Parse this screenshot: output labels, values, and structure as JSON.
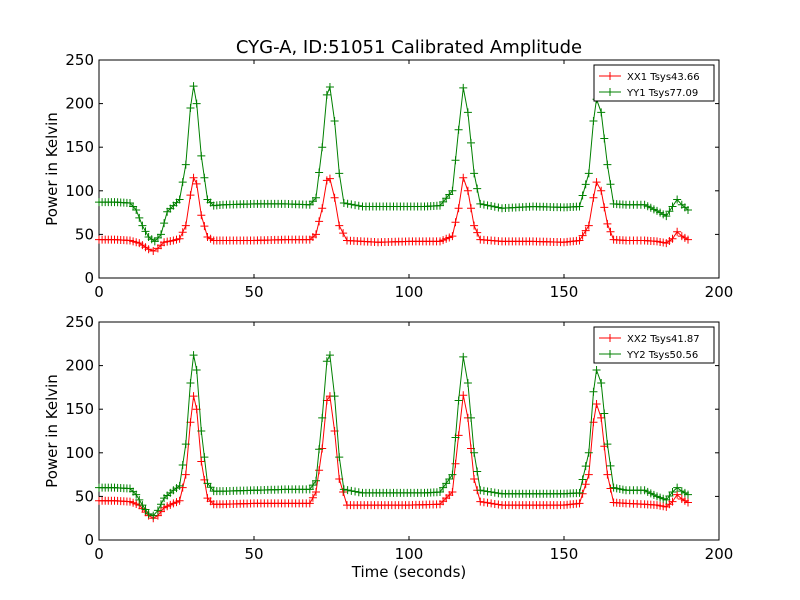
{
  "chart_data": [
    {
      "type": "line",
      "title": "CYG-A, ID:51051 Calibrated Amplitude",
      "xlabel": "",
      "ylabel": "Power in Kelvin",
      "xlim": [
        0,
        200
      ],
      "ylim": [
        0,
        250
      ],
      "xticks": [
        0,
        50,
        100,
        150,
        200
      ],
      "yticks": [
        0,
        50,
        100,
        150,
        200,
        250
      ],
      "marker": "+",
      "legend_position": "top-right",
      "grid": false,
      "series": [
        {
          "name": "XX1 Tsys43.66",
          "color": "#ff0000",
          "points": [
            [
              0,
              44
            ],
            [
              5,
              44
            ],
            [
              10,
              43
            ],
            [
              13,
              40
            ],
            [
              16,
              33
            ],
            [
              17.5,
              31
            ],
            [
              19,
              34
            ],
            [
              21,
              41
            ],
            [
              24,
              43
            ],
            [
              26,
              45
            ],
            [
              28,
              60
            ],
            [
              29.5,
              95
            ],
            [
              30.5,
              115
            ],
            [
              31.5,
              108
            ],
            [
              33,
              72
            ],
            [
              35,
              47
            ],
            [
              37,
              43
            ],
            [
              40,
              43
            ],
            [
              50,
              43
            ],
            [
              60,
              44
            ],
            [
              68,
              44
            ],
            [
              70,
              50
            ],
            [
              72,
              80
            ],
            [
              73.5,
              112
            ],
            [
              74.5,
              114
            ],
            [
              76,
              92
            ],
            [
              77.5,
              60
            ],
            [
              80,
              43
            ],
            [
              90,
              41
            ],
            [
              100,
              42
            ],
            [
              110,
              42
            ],
            [
              114,
              48
            ],
            [
              116,
              80
            ],
            [
              117.5,
              115
            ],
            [
              119,
              100
            ],
            [
              121,
              60
            ],
            [
              123,
              44
            ],
            [
              130,
              42
            ],
            [
              140,
              42
            ],
            [
              150,
              41
            ],
            [
              155,
              43
            ],
            [
              158,
              60
            ],
            [
              159.5,
              92
            ],
            [
              160.5,
              110
            ],
            [
              162,
              100
            ],
            [
              164,
              62
            ],
            [
              166,
              44
            ],
            [
              170,
              43
            ],
            [
              176,
              43
            ],
            [
              180,
              42
            ],
            [
              183,
              40
            ],
            [
              185,
              45
            ],
            [
              186.5,
              53
            ],
            [
              188,
              48
            ],
            [
              190,
              44
            ]
          ]
        },
        {
          "name": "YY1 Tsys77.09",
          "color": "#008000",
          "points": [
            [
              0,
              87
            ],
            [
              5,
              87
            ],
            [
              10,
              86
            ],
            [
              12,
              78
            ],
            [
              14,
              60
            ],
            [
              16,
              47
            ],
            [
              18,
              42
            ],
            [
              20,
              50
            ],
            [
              22,
              76
            ],
            [
              24,
              83
            ],
            [
              26,
              90
            ],
            [
              28,
              130
            ],
            [
              29.5,
              195
            ],
            [
              30.5,
              220
            ],
            [
              31.5,
              200
            ],
            [
              33,
              140
            ],
            [
              35,
              90
            ],
            [
              37,
              83
            ],
            [
              40,
              84
            ],
            [
              50,
              85
            ],
            [
              60,
              85
            ],
            [
              68,
              84
            ],
            [
              70,
              92
            ],
            [
              72,
              150
            ],
            [
              73.5,
              210
            ],
            [
              74.5,
              219
            ],
            [
              76,
              180
            ],
            [
              77.5,
              120
            ],
            [
              79,
              86
            ],
            [
              85,
              82
            ],
            [
              95,
              82
            ],
            [
              105,
              82
            ],
            [
              110,
              83
            ],
            [
              114,
              100
            ],
            [
              116,
              170
            ],
            [
              117.5,
              218
            ],
            [
              119,
              190
            ],
            [
              121,
              120
            ],
            [
              123,
              85
            ],
            [
              130,
              80
            ],
            [
              140,
              82
            ],
            [
              150,
              81
            ],
            [
              155,
              82
            ],
            [
              158,
              120
            ],
            [
              159.5,
              180
            ],
            [
              160.5,
              205
            ],
            [
              162,
              190
            ],
            [
              164,
              130
            ],
            [
              166,
              85
            ],
            [
              170,
              84
            ],
            [
              176,
              84
            ],
            [
              180,
              77
            ],
            [
              183,
              71
            ],
            [
              185,
              82
            ],
            [
              186.5,
              90
            ],
            [
              188,
              84
            ],
            [
              190,
              78
            ]
          ]
        }
      ]
    },
    {
      "type": "line",
      "title": "",
      "xlabel": "Time (seconds)",
      "ylabel": "Power in Kelvin",
      "xlim": [
        0,
        200
      ],
      "ylim": [
        0,
        250
      ],
      "xticks": [
        0,
        50,
        100,
        150,
        200
      ],
      "yticks": [
        0,
        50,
        100,
        150,
        200,
        250
      ],
      "marker": "+",
      "legend_position": "top-right",
      "grid": false,
      "series": [
        {
          "name": "XX2 Tsys41.87",
          "color": "#ff0000",
          "points": [
            [
              0,
              45
            ],
            [
              5,
              45
            ],
            [
              10,
              44
            ],
            [
              13,
              40
            ],
            [
              16,
              28
            ],
            [
              17.5,
              25
            ],
            [
              19,
              28
            ],
            [
              21,
              37
            ],
            [
              24,
              42
            ],
            [
              26,
              45
            ],
            [
              28,
              75
            ],
            [
              29.5,
              135
            ],
            [
              30.5,
              165
            ],
            [
              31.5,
              150
            ],
            [
              33,
              90
            ],
            [
              35,
              48
            ],
            [
              37,
              41
            ],
            [
              40,
              41
            ],
            [
              50,
              42
            ],
            [
              60,
              42
            ],
            [
              68,
              42
            ],
            [
              70,
              55
            ],
            [
              72,
              105
            ],
            [
              73.5,
              160
            ],
            [
              74.5,
              165
            ],
            [
              76,
              125
            ],
            [
              77.5,
              70
            ],
            [
              80,
              40
            ],
            [
              90,
              40
            ],
            [
              100,
              40
            ],
            [
              110,
              41
            ],
            [
              114,
              55
            ],
            [
              116,
              120
            ],
            [
              117.5,
              166
            ],
            [
              119,
              140
            ],
            [
              121,
              70
            ],
            [
              123,
              44
            ],
            [
              130,
              40
            ],
            [
              140,
              40
            ],
            [
              150,
              40
            ],
            [
              155,
              42
            ],
            [
              158,
              75
            ],
            [
              159.5,
              135
            ],
            [
              160.5,
              156
            ],
            [
              162,
              140
            ],
            [
              164,
              75
            ],
            [
              166,
              43
            ],
            [
              170,
              42
            ],
            [
              176,
              41
            ],
            [
              180,
              40
            ],
            [
              183,
              38
            ],
            [
              185,
              44
            ],
            [
              186.5,
              52
            ],
            [
              188,
              47
            ],
            [
              190,
              43
            ]
          ]
        },
        {
          "name": "YY2 Tsys50.56",
          "color": "#008000",
          "points": [
            [
              0,
              60
            ],
            [
              5,
              60
            ],
            [
              10,
              59
            ],
            [
              12,
              52
            ],
            [
              14,
              40
            ],
            [
              16,
              30
            ],
            [
              17.5,
              28
            ],
            [
              19,
              34
            ],
            [
              21,
              48
            ],
            [
              24,
              57
            ],
            [
              26,
              62
            ],
            [
              28,
              110
            ],
            [
              29.5,
              180
            ],
            [
              30.5,
              212
            ],
            [
              31.5,
              195
            ],
            [
              33,
              125
            ],
            [
              35,
              65
            ],
            [
              37,
              56
            ],
            [
              40,
              56
            ],
            [
              50,
              57
            ],
            [
              60,
              58
            ],
            [
              68,
              58
            ],
            [
              70,
              68
            ],
            [
              72,
              140
            ],
            [
              73.5,
              205
            ],
            [
              74.5,
              212
            ],
            [
              76,
              165
            ],
            [
              77.5,
              95
            ],
            [
              79,
              58
            ],
            [
              85,
              54
            ],
            [
              95,
              54
            ],
            [
              105,
              54
            ],
            [
              110,
              55
            ],
            [
              114,
              75
            ],
            [
              116,
              160
            ],
            [
              117.5,
              210
            ],
            [
              119,
              180
            ],
            [
              121,
              100
            ],
            [
              123,
              57
            ],
            [
              130,
              53
            ],
            [
              140,
              53
            ],
            [
              150,
              53
            ],
            [
              155,
              54
            ],
            [
              158,
              100
            ],
            [
              159.5,
              170
            ],
            [
              160.5,
              195
            ],
            [
              162,
              180
            ],
            [
              164,
              110
            ],
            [
              166,
              60
            ],
            [
              170,
              57
            ],
            [
              176,
              57
            ],
            [
              180,
              50
            ],
            [
              183,
              46
            ],
            [
              185,
              55
            ],
            [
              186.5,
              60
            ],
            [
              188,
              56
            ],
            [
              190,
              52
            ]
          ]
        }
      ]
    }
  ]
}
